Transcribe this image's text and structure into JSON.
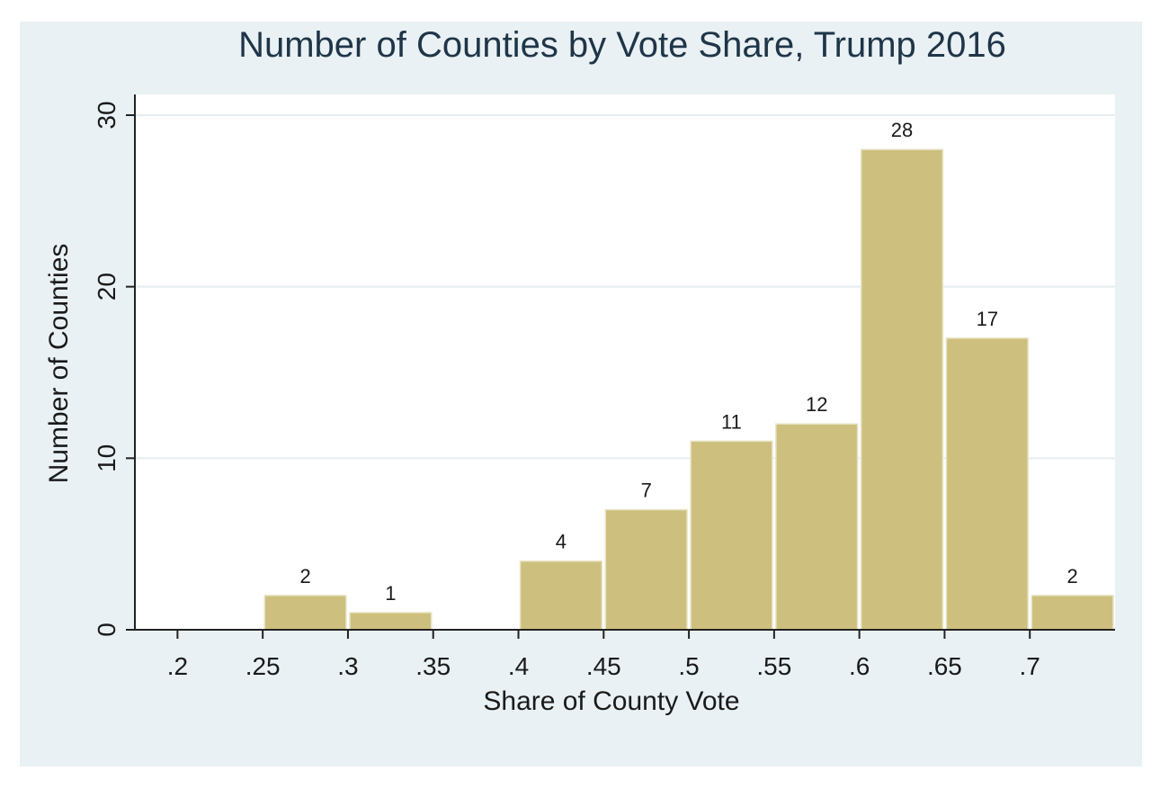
{
  "chart_data": {
    "type": "bar",
    "title": "Number of Counties by Vote Share, Trump 2016",
    "xlabel": "Share of County Vote",
    "ylabel": "Number of Counties",
    "bins": [
      {
        "start": 0.25,
        "end": 0.3,
        "value": 2
      },
      {
        "start": 0.3,
        "end": 0.35,
        "value": 1
      },
      {
        "start": 0.35,
        "end": 0.4,
        "value": 0
      },
      {
        "start": 0.4,
        "end": 0.45,
        "value": 4
      },
      {
        "start": 0.45,
        "end": 0.5,
        "value": 7
      },
      {
        "start": 0.5,
        "end": 0.55,
        "value": 11
      },
      {
        "start": 0.55,
        "end": 0.6,
        "value": 12
      },
      {
        "start": 0.6,
        "end": 0.65,
        "value": 28
      },
      {
        "start": 0.65,
        "end": 0.7,
        "value": 17
      },
      {
        "start": 0.7,
        "end": 0.75,
        "value": 2
      }
    ],
    "data_labels": [
      "2",
      "1",
      "",
      "4",
      "7",
      "11",
      "12",
      "28",
      "17",
      "2"
    ],
    "x_ticks": [
      0.2,
      0.25,
      0.3,
      0.35,
      0.4,
      0.45,
      0.5,
      0.55,
      0.6,
      0.65,
      0.7
    ],
    "x_tick_labels": [
      ".2",
      ".25",
      ".3",
      ".35",
      ".4",
      ".45",
      ".5",
      ".55",
      ".6",
      ".65",
      ".7"
    ],
    "y_ticks": [
      0,
      10,
      20,
      30
    ],
    "y_tick_labels": [
      "0",
      "10",
      "20",
      "30"
    ],
    "xlim": [
      0.175,
      0.75
    ],
    "ylim": [
      0,
      30
    ],
    "grid": "horizontal",
    "legend": "none",
    "colors": {
      "bar": "#cdc07e",
      "bar_edge": "#e8e4c8",
      "background": "#e9f1f5",
      "plot_area": "#ffffff",
      "gridline": "#e4edf1",
      "axis": "#222222",
      "title": "#1f3548",
      "text": "#1a1a1a"
    }
  }
}
